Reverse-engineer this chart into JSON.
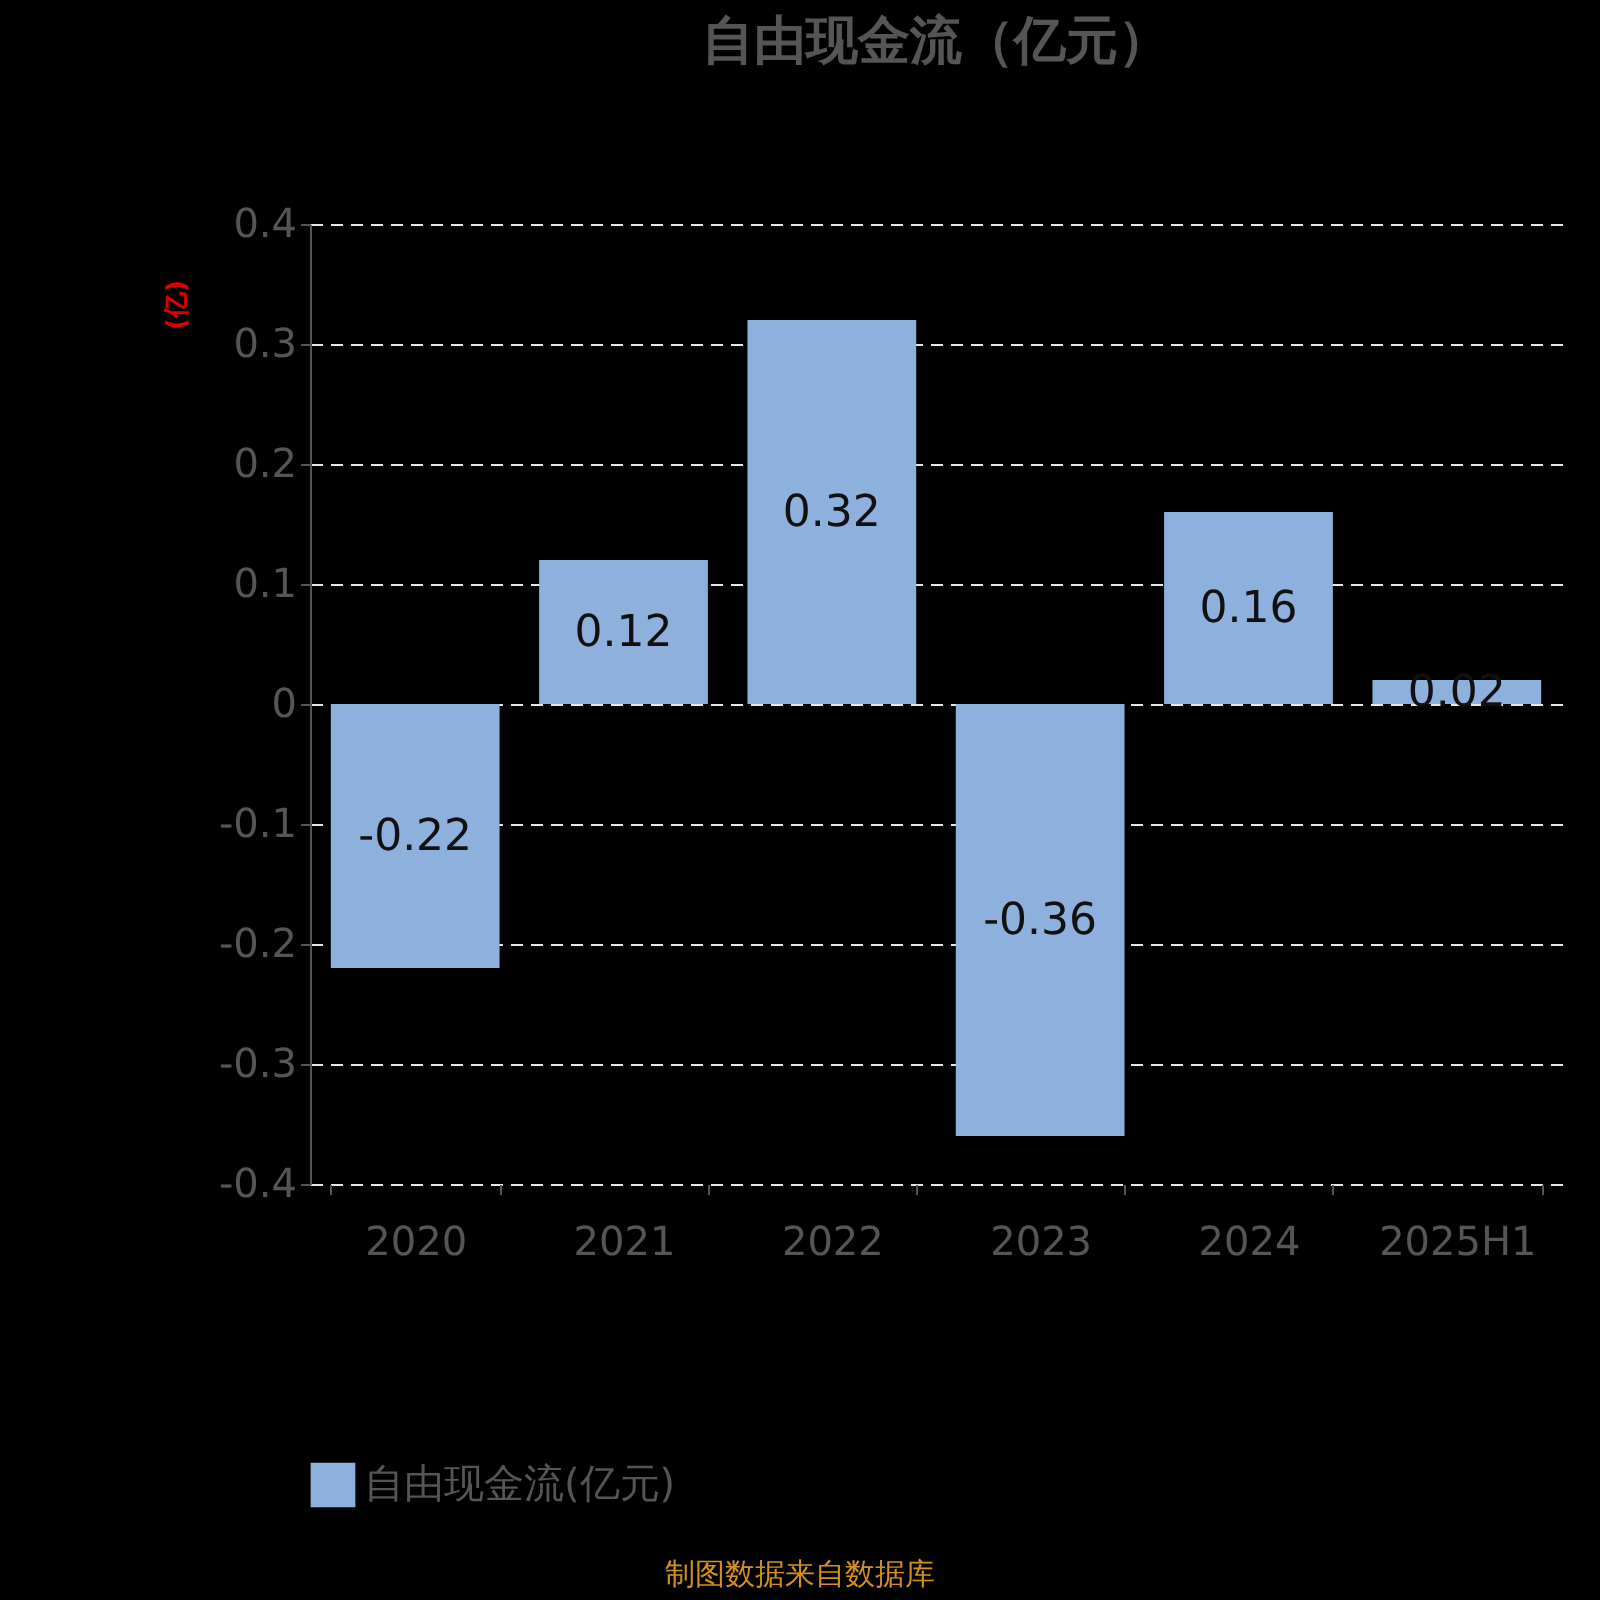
{
  "chart_data": {
    "type": "bar",
    "title": "自由现金流（亿元）",
    "ylabel": "(亿)",
    "categories": [
      "2020",
      "2021",
      "2022",
      "2023",
      "2024",
      "2025H1"
    ],
    "series": [
      {
        "name": "自由现金流(亿元)",
        "color": "#8eb0dc",
        "values": [
          -0.22,
          0.12,
          0.32,
          -0.36,
          0.16,
          0.02
        ]
      }
    ],
    "ylim": [
      -0.4,
      0.4
    ],
    "yticks": [
      -0.4,
      -0.3,
      -0.2,
      -0.1,
      0,
      0.1,
      0.2,
      0.3,
      0.4
    ],
    "grid": "y",
    "legend": "bottom",
    "data_labels": true,
    "annotations": [
      "制图数据来自数据库"
    ]
  }
}
